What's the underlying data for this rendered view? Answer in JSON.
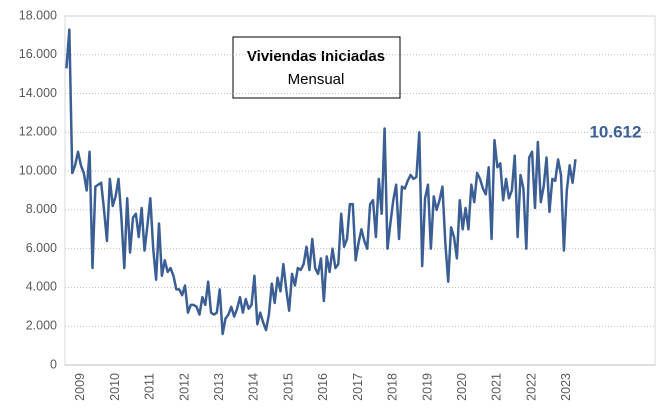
{
  "chart_data": {
    "type": "line",
    "title": "Viviendas Iniciadas",
    "subtitle": "Mensual",
    "color": "#3b5f94",
    "grid": true,
    "categories": [
      null,
      null,
      null,
      null,
      null,
      "2009",
      null,
      null,
      null,
      null,
      null,
      null,
      null,
      null,
      null,
      null,
      null,
      "2010",
      null,
      null,
      null,
      null,
      null,
      null,
      null,
      null,
      null,
      null,
      null,
      "2011",
      null,
      null,
      null,
      null,
      null,
      null,
      null,
      null,
      null,
      null,
      null,
      "2012",
      null,
      null,
      null,
      null,
      null,
      null,
      null,
      null,
      null,
      null,
      null,
      "2013",
      null,
      null,
      null,
      null,
      null,
      null,
      null,
      null,
      null,
      null,
      null,
      "2014",
      null,
      null,
      null,
      null,
      null,
      null,
      null,
      null,
      null,
      null,
      null,
      "2015",
      null,
      null,
      null,
      null,
      null,
      null,
      null,
      null,
      null,
      null,
      null,
      "2016",
      null,
      null,
      null,
      null,
      null,
      null,
      null,
      null,
      null,
      null,
      null,
      "2017",
      null,
      null,
      null,
      null,
      null,
      null,
      null,
      null,
      null,
      null,
      null,
      "2018",
      null,
      null,
      null,
      null,
      null,
      null,
      null,
      null,
      null,
      null,
      null,
      "2019",
      null,
      null,
      null,
      null,
      null,
      null,
      null,
      null,
      null,
      null,
      null,
      "2020",
      null,
      null,
      null,
      null,
      null,
      null,
      null,
      null,
      null,
      null,
      null,
      "2021",
      null,
      null,
      null,
      null,
      null,
      null,
      null,
      null,
      null,
      null,
      null,
      "2022",
      null,
      null,
      null,
      null,
      null,
      null,
      null,
      null,
      null,
      null,
      null,
      "2023",
      null,
      null,
      null,
      null,
      null,
      null,
      null,
      null,
      null,
      null,
      null,
      null,
      null,
      null,
      null,
      null,
      null,
      null,
      null,
      null,
      null,
      null,
      null,
      null,
      null,
      null,
      null,
      null,
      null,
      null
    ],
    "values": [
      15300,
      17300,
      9900,
      10300,
      11000,
      10300,
      9900,
      9000,
      11000,
      5000,
      9200,
      9300,
      9400,
      8000,
      6400,
      9600,
      8200,
      8700,
      9600,
      7600,
      5000,
      8600,
      5800,
      7600,
      7800,
      6600,
      8100,
      5900,
      7200,
      8600,
      6000,
      4400,
      7300,
      4600,
      5400,
      4800,
      5000,
      4600,
      3900,
      3900,
      3600,
      4100,
      2700,
      3100,
      3100,
      3000,
      2600,
      3500,
      3100,
      4300,
      2700,
      2600,
      2700,
      3900,
      1600,
      2400,
      2600,
      3000,
      2500,
      2900,
      3500,
      2700,
      3400,
      2900,
      3100,
      4600,
      2100,
      2700,
      2200,
      1800,
      2600,
      4200,
      3200,
      4500,
      3800,
      5200,
      3900,
      2800,
      4700,
      4100,
      5000,
      4900,
      5200,
      6100,
      4900,
      6500,
      5000,
      4700,
      5500,
      3300,
      5600,
      4800,
      6000,
      5000,
      5200,
      7800,
      6100,
      6500,
      8300,
      8300,
      5400,
      6300,
      7000,
      6400,
      6000,
      8300,
      8500,
      6600,
      9600,
      7800,
      12200,
      6000,
      7300,
      8500,
      9300,
      6500,
      9200,
      9100,
      9500,
      9800,
      9600,
      9700,
      12000,
      5100,
      8600,
      9300,
      6000,
      8700,
      8000,
      8500,
      9200,
      6300,
      4300,
      7100,
      6600,
      5500,
      8500,
      7000,
      8100,
      7000,
      9300,
      8400,
      9900,
      9600,
      9100,
      8800,
      10200,
      6500,
      11600,
      10200,
      10400,
      8500,
      9600,
      8600,
      9000,
      10800,
      6600,
      9800,
      9100,
      6000,
      10700,
      11000,
      8100,
      11500,
      8400,
      9200,
      10700,
      7900,
      9600,
      9500,
      10600,
      9800,
      5900,
      9000,
      10300,
      9400,
      10612,
      null,
      null,
      null,
      null,
      null,
      null,
      null,
      null,
      null,
      null,
      null,
      null,
      null,
      null,
      null,
      null,
      null,
      null,
      null,
      null,
      null,
      null,
      null,
      null,
      null,
      null,
      null
    ],
    "value_labels": [
      null,
      null,
      null,
      null,
      null,
      null,
      null,
      null,
      null,
      null,
      null,
      null,
      null,
      null,
      null,
      null,
      null,
      null,
      null,
      null,
      null,
      null,
      null,
      null,
      null,
      null,
      null,
      null,
      null,
      null,
      null,
      null,
      null,
      null,
      null,
      null,
      null,
      null,
      null,
      null,
      null,
      null,
      null,
      null,
      null,
      null,
      null,
      null,
      null,
      null,
      null,
      null,
      null,
      null,
      null,
      null,
      null,
      null,
      null,
      null,
      null,
      null,
      null,
      null,
      null,
      null,
      null,
      null,
      null,
      null,
      null,
      null,
      null,
      null,
      null,
      null,
      null,
      null,
      null,
      null,
      null,
      null,
      null,
      null,
      null,
      null,
      null,
      null,
      null,
      null,
      null,
      null,
      null,
      null,
      null,
      null,
      null,
      null,
      null,
      null,
      null,
      null,
      null,
      null,
      null,
      null,
      null,
      null,
      null,
      null,
      null,
      null,
      null,
      null,
      null,
      null,
      null,
      null,
      null,
      null,
      null,
      null,
      null,
      null,
      null,
      null,
      null,
      null,
      null,
      null,
      null,
      null,
      null,
      null,
      null,
      null,
      null,
      null,
      null,
      null,
      null,
      null,
      null,
      null,
      null,
      null,
      null,
      null,
      null,
      null,
      null,
      null,
      null,
      null,
      null,
      null,
      null,
      null,
      null,
      null,
      null,
      null,
      null,
      null,
      null,
      null,
      null,
      null,
      null,
      null,
      null,
      null,
      null,
      null,
      null,
      null,
      "10.612",
      null,
      null,
      null,
      null,
      null,
      null,
      null,
      null,
      null,
      null,
      null,
      null,
      null,
      null,
      null,
      null,
      null,
      null,
      null,
      null,
      null,
      null,
      null,
      null,
      null,
      null,
      null
    ],
    "ylim": [
      0,
      18000
    ],
    "yticks": [
      0,
      {
        "value": 2000,
        "label": "2.000"
      },
      {
        "value": 4000,
        "label": "4.000"
      },
      {
        "value": 6000,
        "label": "6.000"
      },
      {
        "value": 8000,
        "label": "8.000"
      },
      {
        "value": 10000,
        "label": "10.000"
      },
      {
        "value": 12000,
        "label": "12.000"
      },
      {
        "value": 14000,
        "label": "14.000"
      },
      {
        "value": 16000,
        "label": "16.000"
      },
      {
        "value": 18000,
        "label": "18.000"
      }
    ]
  }
}
